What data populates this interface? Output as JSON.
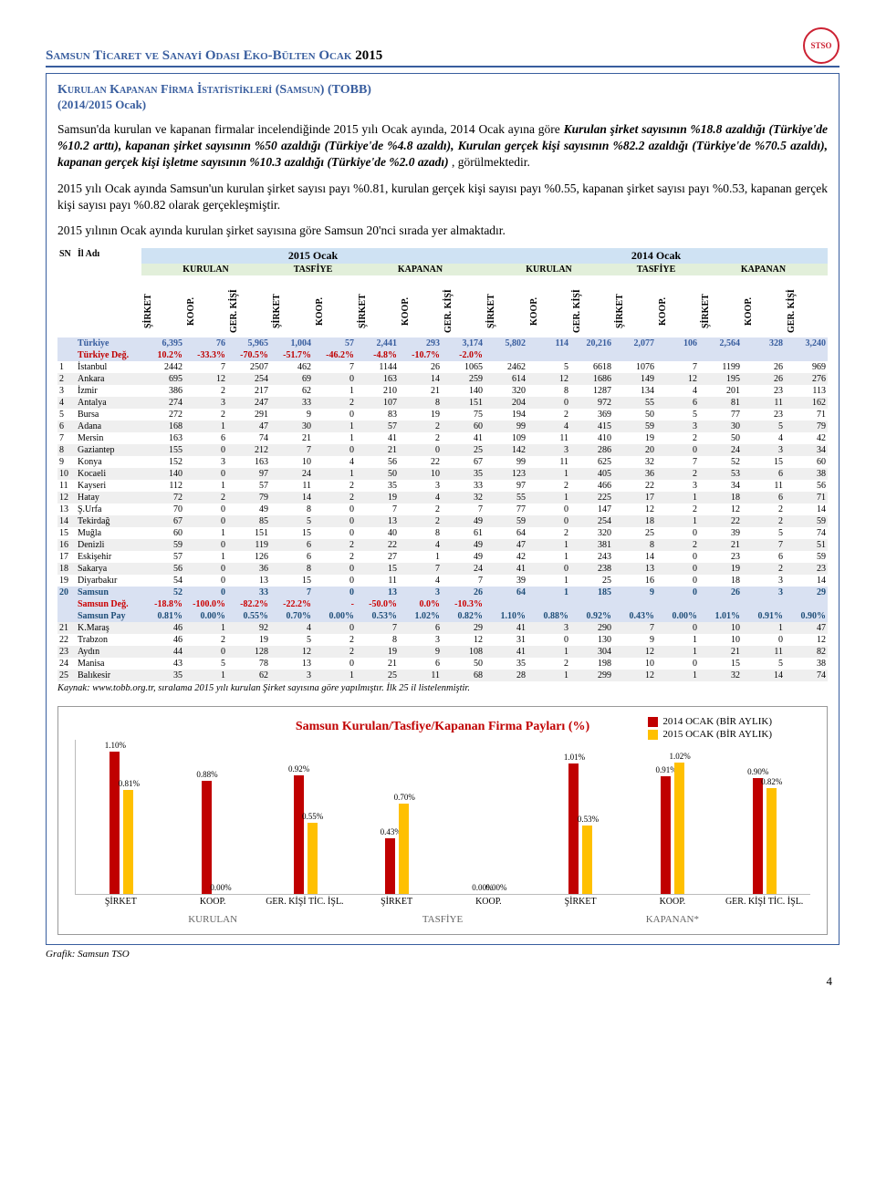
{
  "header": {
    "title_pre": "Samsun Tı̇caret ve Sanayı̇ Odası Eko-Bülten Ocak ",
    "year": "2015"
  },
  "section": {
    "title": "Kurulan Kapanan Fı̇rma İstatı̇stı̇klerı̇ (Samsun) (TOBB)",
    "sub": "(2014/2015 Ocak)",
    "p1": "Samsun'da kurulan ve kapanan firmalar incelendiğinde 2015 yılı Ocak ayında, 2014 Ocak ayına göre ",
    "p1b": "Kurulan şirket sayısının %18.8 azaldığı (Türkiye'de %10.2 arttı), kapanan şirket sayısının %50 azaldığı (Türkiye'de %4.8 azaldı), Kurulan gerçek kişi sayısının %82.2 azaldığı (Türkiye'de %70.5 azaldı), kapanan gerçek kişi işletme sayısının %10.3 azaldığı (Türkiye'de %2.0 azadı)",
    "p1c": ", görülmektedir.",
    "p2": "2015 yılı Ocak ayında Samsun'un kurulan şirket sayısı payı %0.81, kurulan gerçek kişi sayısı payı %0.55, kapanan şirket sayısı payı %0.53, kapanan gerçek kişi sayısı payı %0.82 olarak gerçekleşmiştir.",
    "p3": "2015 yılının Ocak ayında kurulan şirket sayısına göre Samsun 20'nci sırada yer almaktadır."
  },
  "tbl": {
    "head_sn": "SN",
    "head_il": "İl Adı",
    "y2015": "2015 Ocak",
    "y2014": "2014 Ocak",
    "grp": [
      "KURULAN",
      "TASFİYE",
      "KAPANAN",
      "KURULAN",
      "TASFİYE",
      "KAPANAN"
    ],
    "cols": [
      "ŞİRKET",
      "KOOP.",
      "GER. KİŞİ",
      "ŞİRKET",
      "KOOP.",
      "ŞİRKET",
      "KOOP.",
      "GER. KİŞİ",
      "ŞİRKET",
      "KOOP.",
      "GER. KİŞİ",
      "ŞİRKET",
      "KOOP.",
      "ŞİRKET",
      "KOOP.",
      "GER. KİŞİ"
    ],
    "tr_label": "Türkiye",
    "tr": [
      "6,395",
      "76",
      "5,965",
      "1,004",
      "57",
      "2,441",
      "293",
      "3,174",
      "5,802",
      "114",
      "20,216",
      "2,077",
      "106",
      "2,564",
      "328",
      "3,240"
    ],
    "trdeg_label": "Türkiye Değ.",
    "trdeg": [
      "10.2%",
      "-33.3%",
      "-70.5%",
      "-51.7%",
      "-46.2%",
      "-4.8%",
      "-10.7%",
      "-2.0%",
      "",
      "",
      "",
      "",
      "",
      "",
      "",
      ""
    ],
    "rows": [
      {
        "sn": "1",
        "il": "İstanbul",
        "v": [
          "2442",
          "7",
          "2507",
          "462",
          "7",
          "1144",
          "26",
          "1065",
          "2462",
          "5",
          "6618",
          "1076",
          "7",
          "1199",
          "26",
          "969"
        ]
      },
      {
        "sn": "2",
        "il": "Ankara",
        "v": [
          "695",
          "12",
          "254",
          "69",
          "0",
          "163",
          "14",
          "259",
          "614",
          "12",
          "1686",
          "149",
          "12",
          "195",
          "26",
          "276"
        ]
      },
      {
        "sn": "3",
        "il": "İzmir",
        "v": [
          "386",
          "2",
          "217",
          "62",
          "1",
          "210",
          "21",
          "140",
          "320",
          "8",
          "1287",
          "134",
          "4",
          "201",
          "23",
          "113"
        ]
      },
      {
        "sn": "4",
        "il": "Antalya",
        "v": [
          "274",
          "3",
          "247",
          "33",
          "2",
          "107",
          "8",
          "151",
          "204",
          "0",
          "972",
          "55",
          "6",
          "81",
          "11",
          "162"
        ]
      },
      {
        "sn": "5",
        "il": "Bursa",
        "v": [
          "272",
          "2",
          "291",
          "9",
          "0",
          "83",
          "19",
          "75",
          "194",
          "2",
          "369",
          "50",
          "5",
          "77",
          "23",
          "71"
        ]
      },
      {
        "sn": "6",
        "il": "Adana",
        "v": [
          "168",
          "1",
          "47",
          "30",
          "1",
          "57",
          "2",
          "60",
          "99",
          "4",
          "415",
          "59",
          "3",
          "30",
          "5",
          "79"
        ]
      },
      {
        "sn": "7",
        "il": "Mersin",
        "v": [
          "163",
          "6",
          "74",
          "21",
          "1",
          "41",
          "2",
          "41",
          "109",
          "11",
          "410",
          "19",
          "2",
          "50",
          "4",
          "42"
        ]
      },
      {
        "sn": "8",
        "il": "Gaziantep",
        "v": [
          "155",
          "0",
          "212",
          "7",
          "0",
          "21",
          "0",
          "25",
          "142",
          "3",
          "286",
          "20",
          "0",
          "24",
          "3",
          "34"
        ]
      },
      {
        "sn": "9",
        "il": "Konya",
        "v": [
          "152",
          "3",
          "163",
          "10",
          "4",
          "56",
          "22",
          "67",
          "99",
          "11",
          "625",
          "32",
          "7",
          "52",
          "15",
          "60"
        ]
      },
      {
        "sn": "10",
        "il": "Kocaeli",
        "v": [
          "140",
          "0",
          "97",
          "24",
          "1",
          "50",
          "10",
          "35",
          "123",
          "1",
          "405",
          "36",
          "2",
          "53",
          "6",
          "38"
        ]
      },
      {
        "sn": "11",
        "il": "Kayseri",
        "v": [
          "112",
          "1",
          "57",
          "11",
          "2",
          "35",
          "3",
          "33",
          "97",
          "2",
          "466",
          "22",
          "3",
          "34",
          "11",
          "56"
        ]
      },
      {
        "sn": "12",
        "il": "Hatay",
        "v": [
          "72",
          "2",
          "79",
          "14",
          "2",
          "19",
          "4",
          "32",
          "55",
          "1",
          "225",
          "17",
          "1",
          "18",
          "6",
          "71"
        ]
      },
      {
        "sn": "13",
        "il": "Ş.Urfa",
        "v": [
          "70",
          "0",
          "49",
          "8",
          "0",
          "7",
          "2",
          "7",
          "77",
          "0",
          "147",
          "12",
          "2",
          "12",
          "2",
          "14"
        ]
      },
      {
        "sn": "14",
        "il": "Tekirdağ",
        "v": [
          "67",
          "0",
          "85",
          "5",
          "0",
          "13",
          "2",
          "49",
          "59",
          "0",
          "254",
          "18",
          "1",
          "22",
          "2",
          "59"
        ]
      },
      {
        "sn": "15",
        "il": "Muğla",
        "v": [
          "60",
          "1",
          "151",
          "15",
          "0",
          "40",
          "8",
          "61",
          "64",
          "2",
          "320",
          "25",
          "0",
          "39",
          "5",
          "74"
        ]
      },
      {
        "sn": "16",
        "il": "Denizli",
        "v": [
          "59",
          "0",
          "119",
          "6",
          "2",
          "22",
          "4",
          "49",
          "47",
          "1",
          "381",
          "8",
          "2",
          "21",
          "7",
          "51"
        ]
      },
      {
        "sn": "17",
        "il": "Eskişehir",
        "v": [
          "57",
          "1",
          "126",
          "6",
          "2",
          "27",
          "1",
          "49",
          "42",
          "1",
          "243",
          "14",
          "0",
          "23",
          "6",
          "59"
        ]
      },
      {
        "sn": "18",
        "il": "Sakarya",
        "v": [
          "56",
          "0",
          "36",
          "8",
          "0",
          "15",
          "7",
          "24",
          "41",
          "0",
          "238",
          "13",
          "0",
          "19",
          "2",
          "23"
        ]
      },
      {
        "sn": "19",
        "il": "Diyarbakır",
        "v": [
          "54",
          "0",
          "13",
          "15",
          "0",
          "11",
          "4",
          "7",
          "39",
          "1",
          "25",
          "16",
          "0",
          "18",
          "3",
          "14"
        ]
      },
      {
        "sn": "20",
        "il": "Samsun",
        "v": [
          "52",
          "0",
          "33",
          "7",
          "0",
          "13",
          "3",
          "26",
          "64",
          "1",
          "185",
          "9",
          "0",
          "26",
          "3",
          "29"
        ],
        "sam": true
      },
      {
        "deg": true,
        "il": "Samsun Değ.",
        "v": [
          "-18.8%",
          "-100.0%",
          "-82.2%",
          "-22.2%",
          "-",
          "-50.0%",
          "0.0%",
          "-10.3%",
          "",
          "",
          "",
          "",
          "",
          "",
          "",
          ""
        ]
      },
      {
        "pay": true,
        "il": "Samsun Pay",
        "v": [
          "0.81%",
          "0.00%",
          "0.55%",
          "0.70%",
          "0.00%",
          "0.53%",
          "1.02%",
          "0.82%",
          "1.10%",
          "0.88%",
          "0.92%",
          "0.43%",
          "0.00%",
          "1.01%",
          "0.91%",
          "0.90%"
        ]
      },
      {
        "sn": "21",
        "il": "K.Maraş",
        "v": [
          "46",
          "1",
          "92",
          "4",
          "0",
          "7",
          "6",
          "29",
          "41",
          "3",
          "290",
          "7",
          "0",
          "10",
          "1",
          "47"
        ]
      },
      {
        "sn": "22",
        "il": "Trabzon",
        "v": [
          "46",
          "2",
          "19",
          "5",
          "2",
          "8",
          "3",
          "12",
          "31",
          "0",
          "130",
          "9",
          "1",
          "10",
          "0",
          "12"
        ]
      },
      {
        "sn": "23",
        "il": "Aydın",
        "v": [
          "44",
          "0",
          "128",
          "12",
          "2",
          "19",
          "9",
          "108",
          "41",
          "1",
          "304",
          "12",
          "1",
          "21",
          "11",
          "82"
        ]
      },
      {
        "sn": "24",
        "il": "Manisa",
        "v": [
          "43",
          "5",
          "78",
          "13",
          "0",
          "21",
          "6",
          "50",
          "35",
          "2",
          "198",
          "10",
          "0",
          "15",
          "5",
          "38"
        ]
      },
      {
        "sn": "25",
        "il": "Balıkesir",
        "v": [
          "35",
          "1",
          "62",
          "3",
          "1",
          "25",
          "11",
          "68",
          "28",
          "1",
          "299",
          "12",
          "1",
          "32",
          "14",
          "74"
        ]
      }
    ],
    "source": "Kaynak: www.tobb.org.tr, sıralama 2015 yılı kurulan Şirket sayısına göre yapılmıştır. İlk 25 il listelenmiştir."
  },
  "chart": {
    "title": "Samsun Kurulan/Tasfiye/Kapanan  Firma Payları (%)",
    "legend": [
      "2014 OCAK (BİR AYLIK)",
      "2015 OCAK (BİR AYLIK)"
    ],
    "colors": {
      "s2014": "#c00000",
      "s2015": "#ffc000"
    },
    "max": 1.2,
    "groups": [
      {
        "cat": "ŞİRKET",
        "v2014": 1.1,
        "v2015": 0.81
      },
      {
        "cat": "KOOP.",
        "v2014": 0.88,
        "v2015": 0.0
      },
      {
        "cat": "GER. KİŞİ TİC. İŞL.",
        "v2014": 0.92,
        "v2015": 0.55
      },
      {
        "cat": "ŞİRKET",
        "v2014": 0.43,
        "v2015": 0.7
      },
      {
        "cat": "KOOP.",
        "v2014": 0.0,
        "v2015": 0.0
      },
      {
        "cat": "ŞİRKET",
        "v2014": 1.01,
        "v2015": 0.53
      },
      {
        "cat": "KOOP.",
        "v2014": 0.91,
        "v2015": 1.02
      },
      {
        "cat": "GER. KİŞİ TİC. İŞL.",
        "v2014": 0.9,
        "v2015": 0.82
      }
    ],
    "supercats": [
      "KURULAN",
      "TASFİYE",
      "KAPANAN*"
    ],
    "supersplit": [
      3,
      2,
      3
    ],
    "grafik": "Grafik: Samsun TSO"
  },
  "page_no": "4"
}
